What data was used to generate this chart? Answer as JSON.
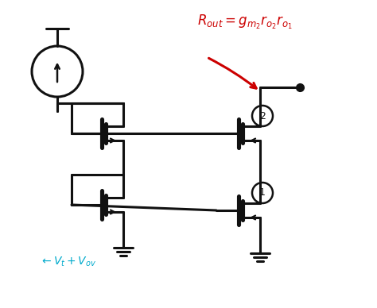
{
  "bg_color": "#ffffff",
  "line_color": "#111111",
  "red_color": "#cc0000",
  "blue_color": "#00aacc",
  "lw": 2.2,
  "fig_w": 4.74,
  "fig_h": 3.88,
  "dpi": 100
}
